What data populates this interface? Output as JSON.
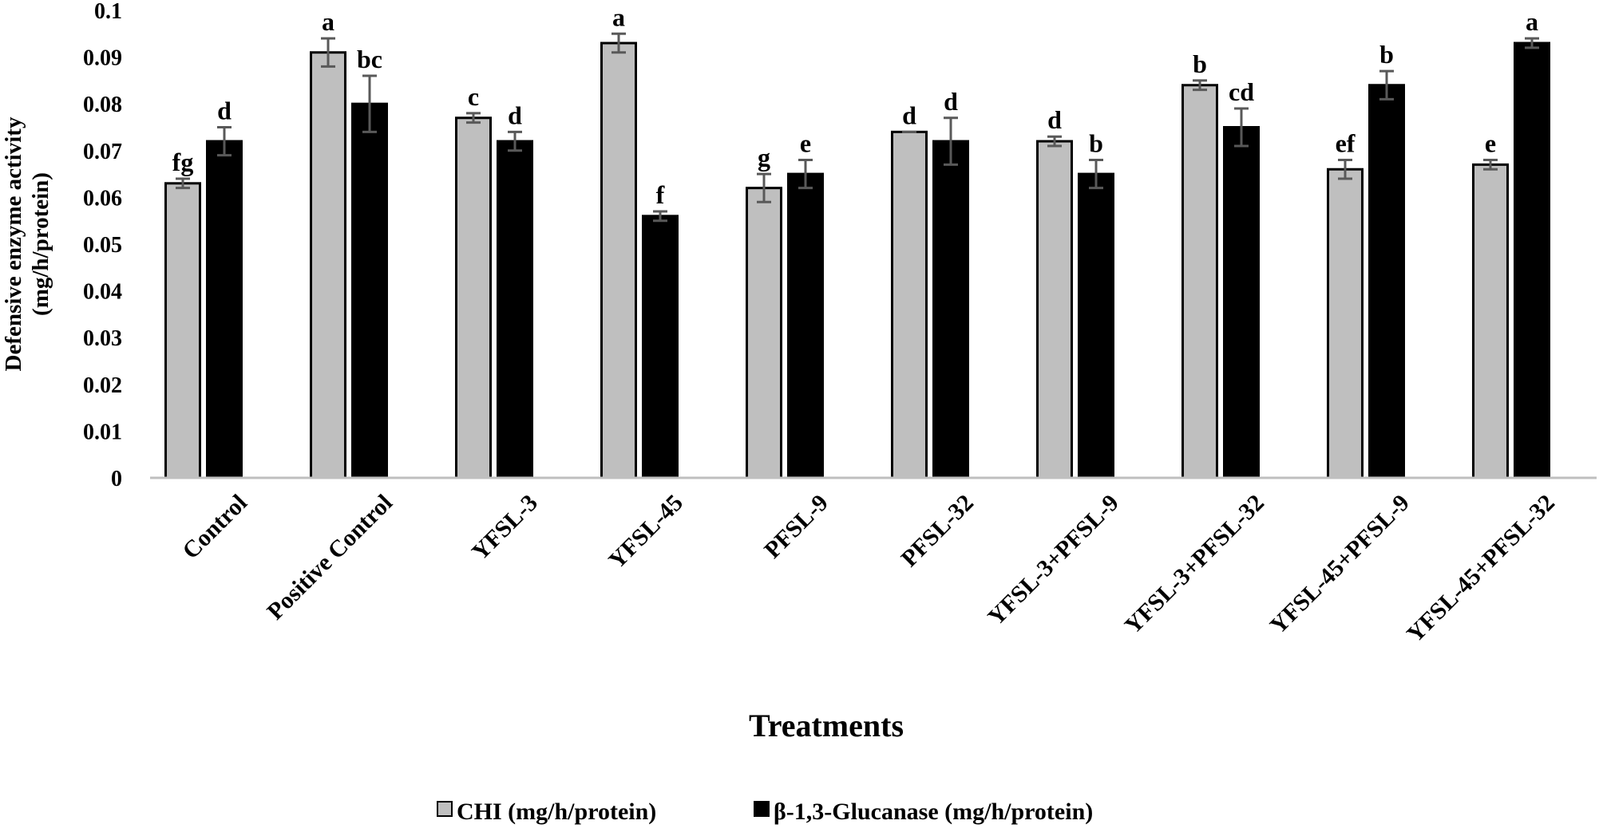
{
  "chart_data": {
    "type": "bar",
    "title": "",
    "xlabel": "Treatments",
    "ylabel_lines": [
      "Defensive enzyme activity",
      "(mg/h/protein)"
    ],
    "ylim": [
      0,
      0.1
    ],
    "yticks": [
      "0",
      "0.01",
      "0.02",
      "0.03",
      "0.04",
      "0.05",
      "0.06",
      "0.07",
      "0.08",
      "0.09",
      "0.1"
    ],
    "categories": [
      "Control",
      "Positive Control",
      "YFSL-3",
      "YFSL-45",
      "PFSL-9",
      "PFSL-32",
      "YFSL-3+PFSL-9",
      "YFSL-3+PFSL-32",
      "YFSL-45+PFSL-9",
      "YFSL-45+PFSL-32"
    ],
    "series": [
      {
        "name": "CHI (mg/h/protein)",
        "color": "#bfbfbf",
        "values": [
          0.063,
          0.091,
          0.077,
          0.093,
          0.062,
          0.074,
          0.072,
          0.084,
          0.066,
          0.067
        ],
        "errors": [
          0.001,
          0.003,
          0.001,
          0.002,
          0.003,
          0.0,
          0.001,
          0.001,
          0.002,
          0.001
        ],
        "letters": [
          "fg",
          "a",
          "c",
          "a",
          "g",
          "d",
          "d",
          "b",
          "ef",
          "e"
        ]
      },
      {
        "name": "β-1,3-Glucanase (mg/h/protein)",
        "color": "#000000",
        "values": [
          0.072,
          0.08,
          0.072,
          0.056,
          0.065,
          0.072,
          0.065,
          0.075,
          0.084,
          0.093
        ],
        "errors": [
          0.003,
          0.006,
          0.002,
          0.001,
          0.003,
          0.005,
          0.003,
          0.004,
          0.003,
          0.001
        ],
        "letters": [
          "d",
          "bc",
          "d",
          "f",
          "e",
          "d",
          "b",
          "cd",
          "b",
          "a"
        ]
      }
    ],
    "legend_position": "bottom-center",
    "grid": false
  }
}
